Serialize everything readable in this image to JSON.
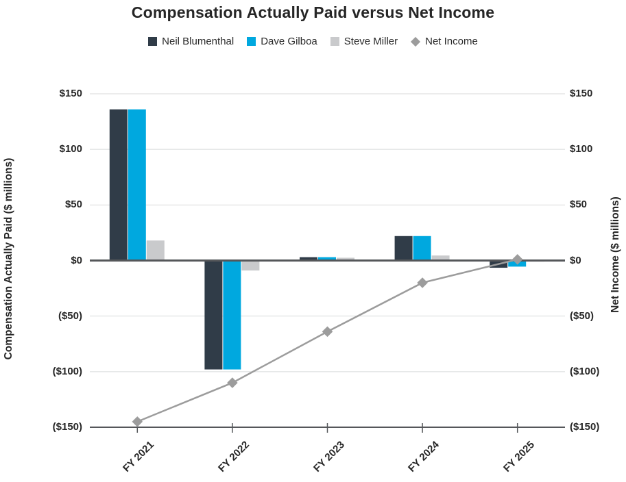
{
  "chart_data": {
    "type": "bar+line combo",
    "title": "Compensation Actually Paid versus Net Income",
    "categories": [
      "FY 2021",
      "FY 2022",
      "FY 2023",
      "FY 2024",
      "FY 2025"
    ],
    "series": [
      {
        "name": "Neil Blumenthal",
        "type": "bar",
        "color": "#303c48",
        "values": [
          136,
          -98,
          3,
          22,
          -6.5
        ]
      },
      {
        "name": "Dave Gilboa",
        "type": "bar",
        "color": "#00a8df",
        "values": [
          136,
          -98,
          3,
          22,
          -5.5
        ]
      },
      {
        "name": "Steve Miller",
        "type": "bar",
        "color": "#c9cacc",
        "values": [
          18,
          -9,
          2.5,
          4.5,
          -1
        ]
      },
      {
        "name": "Net Income",
        "type": "line",
        "marker": "diamond",
        "color": "#9c9c9c",
        "values": [
          -145,
          -110,
          -64,
          -20,
          1
        ]
      }
    ],
    "left_axis": {
      "title": "Compensation Actually Paid ($ millions)",
      "tick_labels": [
        "$150",
        "$100",
        "$50",
        "$0",
        "($50)",
        "($100)",
        "($150)"
      ],
      "tick_values": [
        150,
        100,
        50,
        0,
        -50,
        -100,
        -150
      ],
      "range": [
        -150,
        150
      ]
    },
    "right_axis": {
      "title": "Net Income ($ millions)",
      "tick_labels": [
        "$150",
        "$100",
        "$50",
        "$0",
        "($50)",
        "($100)",
        "($150)"
      ],
      "tick_values": [
        150,
        100,
        50,
        0,
        -50,
        -100,
        -150
      ],
      "range": [
        -150,
        150
      ]
    },
    "legend_position": "top",
    "grid": true,
    "styles": {
      "background": "#ffffff",
      "axis_line_color": "#55575a",
      "gridline_color": "#d8d9da",
      "text_color": "#272727"
    }
  }
}
